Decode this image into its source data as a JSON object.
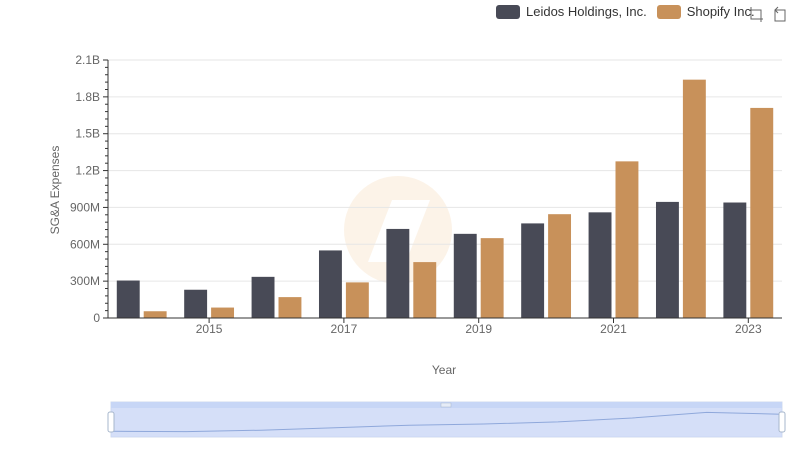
{
  "legend": {
    "items": [
      {
        "name": "Leidos Holdings, Inc.",
        "color": "#484a56"
      },
      {
        "name": "Shopify Inc.",
        "color": "#c8915a"
      }
    ]
  },
  "toolbox": {
    "icons": [
      "zoom-icon",
      "restore-icon"
    ]
  },
  "chart_data": {
    "type": "bar",
    "xlabel": "Year",
    "ylabel": "SG&A Expenses",
    "categories": [
      "2014",
      "2015",
      "2016",
      "2017",
      "2018",
      "2019",
      "2020",
      "2021",
      "2022",
      "2023"
    ],
    "x_tick_labels": [
      "2015",
      "2017",
      "2019",
      "2021",
      "2023"
    ],
    "y_tick_labels": [
      "0",
      "300M",
      "600M",
      "900M",
      "1.2B",
      "1.5B",
      "1.8B",
      "2.1B"
    ],
    "ylim": [
      0,
      2100000000
    ],
    "grid": true,
    "legend_position": "top-right",
    "series": [
      {
        "name": "Leidos Holdings, Inc.",
        "color": "#484a56",
        "values": [
          305000000,
          230000000,
          335000000,
          550000000,
          725000000,
          685000000,
          770000000,
          860000000,
          945000000,
          940000000
        ]
      },
      {
        "name": "Shopify Inc.",
        "color": "#c8915a",
        "values": [
          55000000,
          85000000,
          170000000,
          290000000,
          455000000,
          650000000,
          845000000,
          1275000000,
          1940000000,
          1710000000
        ]
      }
    ],
    "datazoom": {
      "start_percent": 0,
      "end_percent": 100
    }
  }
}
